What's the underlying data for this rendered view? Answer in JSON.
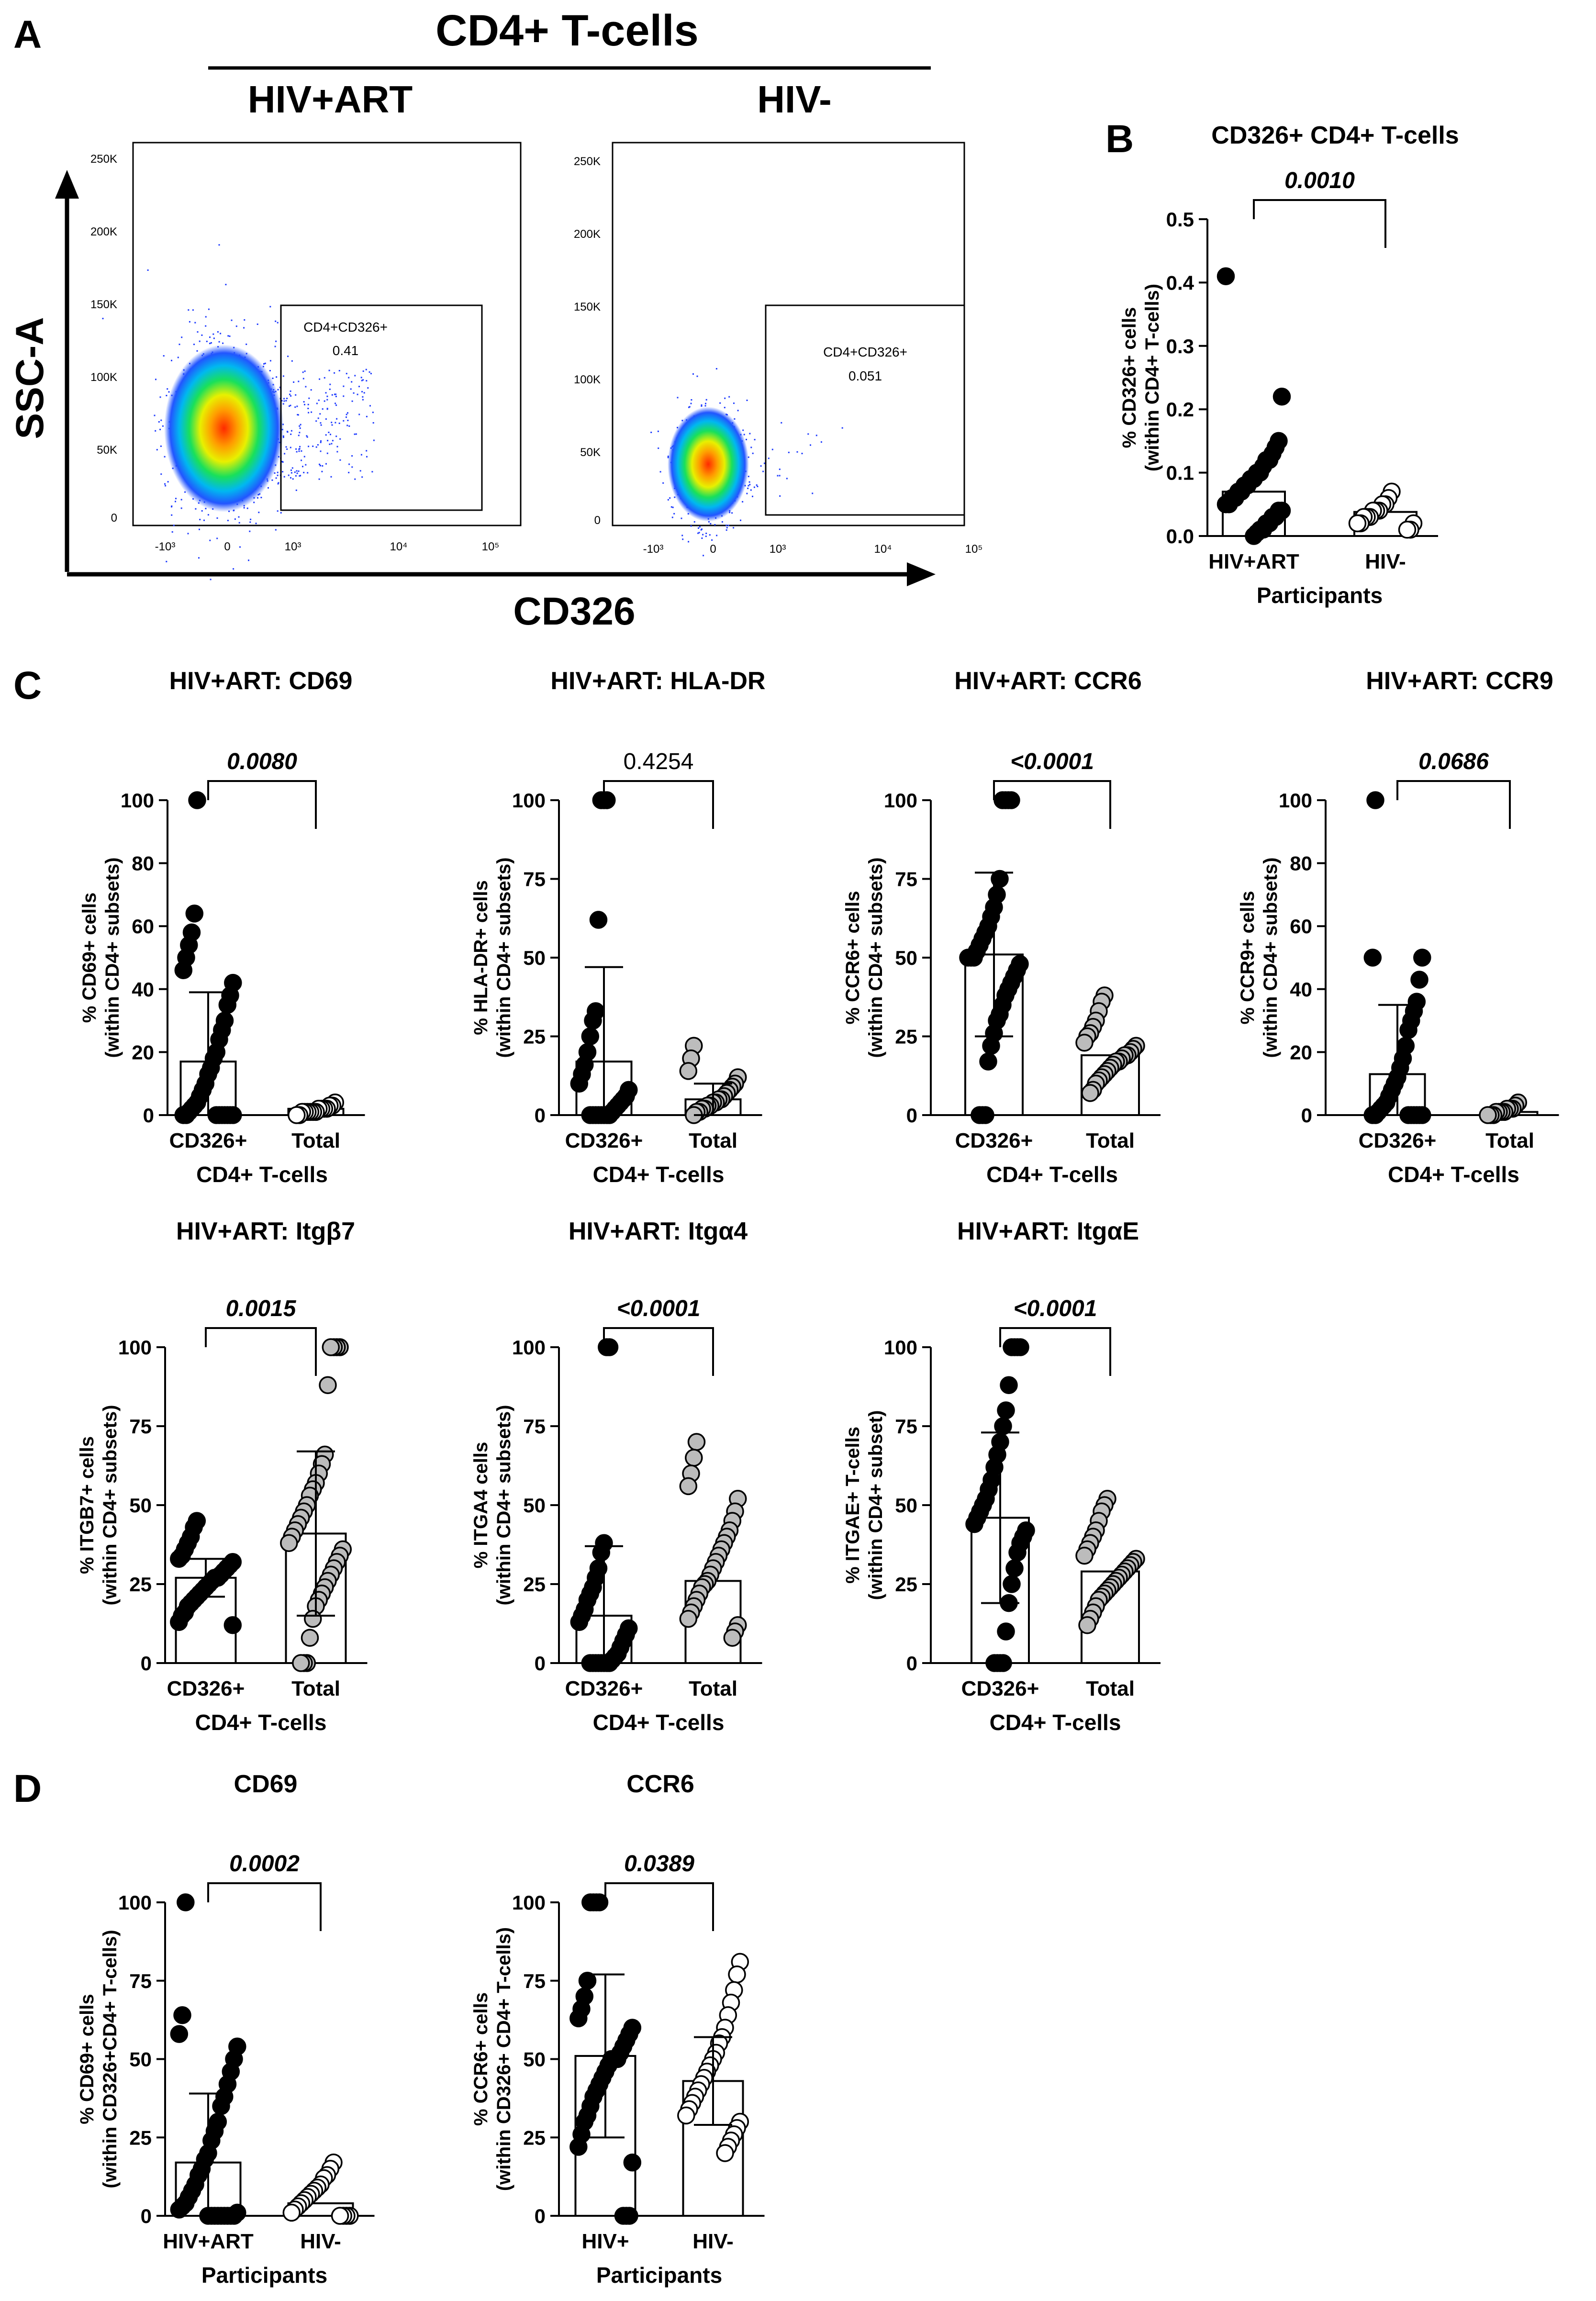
{
  "panel_a": {
    "letter": "A",
    "header": "CD4+ T-cells",
    "xlabel": "CD326",
    "ylabel": "SSC-A",
    "y_ticks": [
      "250K",
      "200K",
      "150K",
      "100K",
      "50K",
      "0"
    ],
    "x_ticks": [
      "-10³",
      "0",
      "10³",
      "10⁴",
      "10⁵"
    ],
    "plots": [
      {
        "group": "HIV+ART",
        "gate_name": "CD4+CD326+",
        "gate_value": "0.41"
      },
      {
        "group": "HIV-",
        "gate_name": "CD4+CD326+",
        "gate_value": "0.051"
      }
    ]
  },
  "panel_b_letter": "B",
  "panel_c_letter": "C",
  "panel_d_letter": "D",
  "chart_data": [
    {
      "id": "B",
      "type": "bar",
      "title": "CD326+ CD4+ T-cells",
      "ylabel": [
        "% CD326+ cells",
        "(within CD4+ T-cells)"
      ],
      "xlabel": "Participants",
      "ylim": [
        0,
        0.5
      ],
      "yticks": [
        "0.0",
        "0.1",
        "0.2",
        "0.3",
        "0.4",
        "0.5"
      ],
      "categories": [
        "HIV+ART",
        "HIV-"
      ],
      "bars": [
        {
          "mean": 0.07,
          "sd": null,
          "fill": "white"
        },
        {
          "mean": 0.038,
          "sd": null,
          "fill": "white"
        }
      ],
      "points": [
        [
          0.41,
          0.22,
          0.15,
          0.14,
          0.13,
          0.12,
          0.12,
          0.11,
          0.1,
          0.1,
          0.09,
          0.09,
          0.08,
          0.08,
          0.07,
          0.07,
          0.06,
          0.06,
          0.05,
          0.05,
          0.04,
          0.04,
          0.03,
          0.03,
          0.02,
          0.02,
          0.01,
          0.01,
          0.005,
          0.0
        ],
        [
          0.07,
          0.06,
          0.05,
          0.05,
          0.04,
          0.04,
          0.04,
          0.03,
          0.03,
          0.03,
          0.02,
          0.02,
          0.02,
          0.01,
          0.01
        ]
      ],
      "point_colors": [
        "black",
        "white"
      ],
      "pvalue": "0.0010",
      "p_italic": true
    },
    {
      "id": "C1",
      "type": "bar",
      "title": "HIV+ART: CD69",
      "ylabel": [
        "% CD69+ cells",
        "(within CD4+ subsets)"
      ],
      "xlabel": "CD4+ T-cells",
      "ylim": [
        0,
        100
      ],
      "yticks": [
        "0",
        "20",
        "40",
        "60",
        "80",
        "100"
      ],
      "categories": [
        "CD326+",
        "Total"
      ],
      "bars": [
        {
          "mean": 17,
          "sd": 22,
          "fill": "white"
        },
        {
          "mean": 2,
          "sd": null,
          "fill": "white"
        }
      ],
      "points": [
        [
          100,
          64,
          58,
          54,
          50,
          46,
          42,
          38,
          35,
          30,
          27,
          24,
          20,
          18,
          15,
          13,
          10,
          8,
          6,
          4,
          3,
          2,
          1,
          0,
          0,
          0,
          0,
          0,
          0,
          0,
          0,
          0
        ],
        [
          4,
          3,
          3,
          2,
          2,
          2,
          2,
          1,
          1,
          1,
          1,
          1,
          1,
          0,
          0
        ]
      ],
      "point_colors": [
        "black",
        "white"
      ],
      "pvalue": "0.0080",
      "p_italic": true
    },
    {
      "id": "C2",
      "type": "bar",
      "title": "HIV+ART: HLA-DR",
      "ylabel": [
        "% HLA-DR+ cells",
        "(within CD4+ subsets)"
      ],
      "xlabel": "CD4+ T-cells",
      "ylim": [
        0,
        100
      ],
      "yticks": [
        "0",
        "25",
        "50",
        "75",
        "100"
      ],
      "categories": [
        "CD326+",
        "Total"
      ],
      "bars": [
        {
          "mean": 17,
          "sd": 30,
          "fill": "white"
        },
        {
          "mean": 5,
          "sd": 5,
          "fill": "white"
        }
      ],
      "points": [
        [
          100,
          100,
          100,
          62,
          33,
          30,
          25,
          20,
          16,
          13,
          10,
          8,
          6,
          5,
          4,
          3,
          2,
          1,
          0,
          0,
          0,
          0,
          0,
          0,
          0,
          0
        ],
        [
          22,
          18,
          14,
          12,
          10,
          9,
          8,
          7,
          6,
          5,
          5,
          4,
          4,
          3,
          3,
          2,
          2,
          1,
          1,
          0
        ]
      ],
      "point_colors": [
        "black",
        "gray"
      ],
      "pvalue": "0.4254",
      "p_italic": false
    },
    {
      "id": "C3",
      "type": "bar",
      "title": "HIV+ART: CCR6",
      "ylabel": [
        "% CCR6+ cells",
        "(within CD4+ subsets)"
      ],
      "xlabel": "CD4+ T-cells",
      "ylim": [
        0,
        100
      ],
      "yticks": [
        "0",
        "25",
        "50",
        "75",
        "100"
      ],
      "categories": [
        "CD326+",
        "Total"
      ],
      "bars": [
        {
          "mean": 51,
          "sd": 26,
          "fill": "white"
        },
        {
          "mean": 19,
          "sd": null,
          "fill": "white"
        }
      ],
      "points": [
        [
          100,
          100,
          100,
          100,
          75,
          70,
          66,
          63,
          60,
          58,
          56,
          54,
          52,
          50,
          50,
          50,
          48,
          46,
          44,
          42,
          40,
          38,
          35,
          32,
          30,
          26,
          22,
          17,
          0,
          0,
          0
        ],
        [
          38,
          36,
          33,
          30,
          28,
          26,
          25,
          23,
          22,
          21,
          20,
          19,
          19,
          18,
          17,
          17,
          16,
          15,
          14,
          13,
          12,
          11,
          10,
          8,
          7
        ]
      ],
      "point_colors": [
        "black",
        "gray"
      ],
      "pvalue": "<0.0001",
      "p_italic": true
    },
    {
      "id": "C4",
      "type": "bar",
      "title": "HIV+ART: CCR9",
      "ylabel": [
        "% CCR9+ cells",
        "(within CD4+ subsets)"
      ],
      "xlabel": "CD4+ T-cells",
      "ylim": [
        0,
        100
      ],
      "yticks": [
        "0",
        "20",
        "40",
        "60",
        "80",
        "100"
      ],
      "categories": [
        "CD326+",
        "Total"
      ],
      "bars": [
        {
          "mean": 13,
          "sd": 22,
          "fill": "white"
        },
        {
          "mean": 1,
          "sd": null,
          "fill": "white"
        }
      ],
      "points": [
        [
          100,
          50,
          50,
          43,
          36,
          33,
          30,
          27,
          22,
          18,
          15,
          12,
          10,
          8,
          6,
          4,
          3,
          2,
          1,
          0,
          0,
          0,
          0,
          0,
          0,
          0,
          0
        ],
        [
          4,
          3,
          2,
          2,
          2,
          1,
          1,
          1,
          1,
          0,
          0,
          0
        ]
      ],
      "point_colors": [
        "black",
        "gray"
      ],
      "pvalue": "0.0686",
      "p_italic": true
    },
    {
      "id": "C5",
      "type": "bar",
      "title": "HIV+ART: Itgβ7",
      "ylabel": [
        "% ITGB7+ cells",
        "(within CD4+ subsets)"
      ],
      "xlabel": "CD4+ T-cells",
      "ylim": [
        0,
        100
      ],
      "yticks": [
        "0",
        "25",
        "50",
        "75",
        "100"
      ],
      "categories": [
        "CD326+",
        "Total"
      ],
      "bars": [
        {
          "mean": 27,
          "sd": 6,
          "fill": "white"
        },
        {
          "mean": 41,
          "sd": 26,
          "fill": "white"
        }
      ],
      "points": [
        [
          45,
          43,
          40,
          38,
          36,
          34,
          33,
          32,
          31,
          30,
          29,
          28,
          27,
          27,
          26,
          25,
          24,
          23,
          22,
          21,
          20,
          19,
          18,
          16,
          15,
          13,
          12
        ],
        [
          100,
          100,
          100,
          100,
          88,
          66,
          63,
          60,
          57,
          55,
          53,
          50,
          48,
          46,
          44,
          42,
          40,
          38,
          36,
          34,
          32,
          30,
          28,
          26,
          24,
          22,
          20,
          18,
          14,
          8,
          0,
          0,
          0
        ]
      ],
      "point_colors": [
        "black",
        "gray"
      ],
      "pvalue": "0.0015",
      "p_italic": true
    },
    {
      "id": "C6",
      "type": "bar",
      "title": "HIV+ART: Itgα4",
      "ylabel": [
        "% ITGA4 cells",
        "(within CD4+ subsets)"
      ],
      "xlabel": "CD4+ T-cells",
      "ylim": [
        0,
        100
      ],
      "yticks": [
        "0",
        "25",
        "50",
        "75",
        "100"
      ],
      "categories": [
        "CD326+",
        "Total"
      ],
      "bars": [
        {
          "mean": 15,
          "sd": 22,
          "fill": "white"
        },
        {
          "mean": 26,
          "sd": null,
          "fill": "white"
        }
      ],
      "points": [
        [
          100,
          100,
          38,
          35,
          30,
          27,
          24,
          22,
          20,
          17,
          15,
          13,
          11,
          9,
          7,
          5,
          3,
          2,
          1,
          0,
          0,
          0,
          0,
          0,
          0,
          0,
          0
        ],
        [
          70,
          65,
          60,
          56,
          52,
          48,
          45,
          42,
          40,
          38,
          36,
          34,
          32,
          30,
          28,
          26,
          25,
          24,
          22,
          20,
          18,
          16,
          14,
          12,
          10,
          8
        ]
      ],
      "point_colors": [
        "black",
        "gray"
      ],
      "pvalue": "<0.0001",
      "p_italic": true
    },
    {
      "id": "C7",
      "type": "bar",
      "title": "HIV+ART: ItgαE",
      "ylabel": [
        "% ITGAE+ T-cells",
        "(within CD4+ subset)"
      ],
      "xlabel": "CD4+ T-cells",
      "ylim": [
        0,
        100
      ],
      "yticks": [
        "0",
        "25",
        "50",
        "75",
        "100"
      ],
      "categories": [
        "CD326+",
        "Total"
      ],
      "bars": [
        {
          "mean": 46,
          "sd": 27,
          "fill": "white"
        },
        {
          "mean": 29,
          "sd": null,
          "fill": "white"
        }
      ],
      "points": [
        [
          100,
          100,
          100,
          100,
          88,
          80,
          75,
          70,
          66,
          62,
          58,
          55,
          52,
          50,
          48,
          46,
          44,
          42,
          40,
          38,
          35,
          30,
          25,
          19,
          10,
          0,
          0,
          0,
          0
        ],
        [
          52,
          50,
          48,
          45,
          42,
          40,
          38,
          36,
          34,
          33,
          32,
          31,
          30,
          29,
          28,
          27,
          26,
          25,
          24,
          23,
          22,
          21,
          20,
          18,
          16,
          14,
          12
        ]
      ],
      "point_colors": [
        "black",
        "gray"
      ],
      "pvalue": "<0.0001",
      "p_italic": true
    },
    {
      "id": "D1",
      "type": "bar",
      "title": "CD69",
      "ylabel": [
        "% CD69+ cells",
        "(within CD326+CD4+ T-cells)"
      ],
      "xlabel": "Participants",
      "ylim": [
        0,
        100
      ],
      "yticks": [
        "0",
        "25",
        "50",
        "75",
        "100"
      ],
      "categories": [
        "HIV+ART",
        "HIV-"
      ],
      "bars": [
        {
          "mean": 17,
          "sd": 22,
          "fill": "white"
        },
        {
          "mean": 4,
          "sd": null,
          "fill": "white"
        }
      ],
      "points": [
        [
          100,
          64,
          58,
          54,
          50,
          46,
          42,
          38,
          35,
          30,
          27,
          24,
          20,
          18,
          15,
          13,
          10,
          8,
          6,
          4,
          3,
          2,
          1,
          0,
          0,
          0,
          0,
          0,
          0,
          0,
          0,
          0
        ],
        [
          17,
          15,
          13,
          12,
          10,
          9,
          8,
          7,
          6,
          5,
          4,
          3,
          2,
          1,
          0,
          0,
          0,
          0
        ]
      ],
      "point_colors": [
        "black",
        "white"
      ],
      "pvalue": "0.0002",
      "p_italic": true
    },
    {
      "id": "D2",
      "type": "bar",
      "title": "CCR6",
      "ylabel": [
        "% CCR6+ cells",
        "(within CD326+ CD4+ T-cells)"
      ],
      "xlabel": "Participants",
      "ylim": [
        0,
        100
      ],
      "yticks": [
        "0",
        "25",
        "50",
        "75",
        "100"
      ],
      "categories": [
        "HIV+",
        "HIV-"
      ],
      "bars": [
        {
          "mean": 51,
          "sd": 26,
          "fill": "white"
        },
        {
          "mean": 43,
          "sd": 14,
          "fill": "white"
        }
      ],
      "points": [
        [
          100,
          100,
          100,
          100,
          75,
          70,
          66,
          63,
          60,
          58,
          56,
          54,
          52,
          50,
          50,
          50,
          48,
          46,
          44,
          42,
          40,
          38,
          35,
          32,
          30,
          26,
          22,
          17,
          0,
          0,
          0
        ],
        [
          81,
          77,
          72,
          68,
          64,
          60,
          57,
          55,
          52,
          50,
          48,
          46,
          44,
          42,
          40,
          38,
          36,
          34,
          32,
          30,
          28,
          26,
          24,
          22,
          20
        ]
      ],
      "point_colors": [
        "black",
        "white"
      ],
      "pvalue": "0.0389",
      "p_italic": true
    }
  ]
}
